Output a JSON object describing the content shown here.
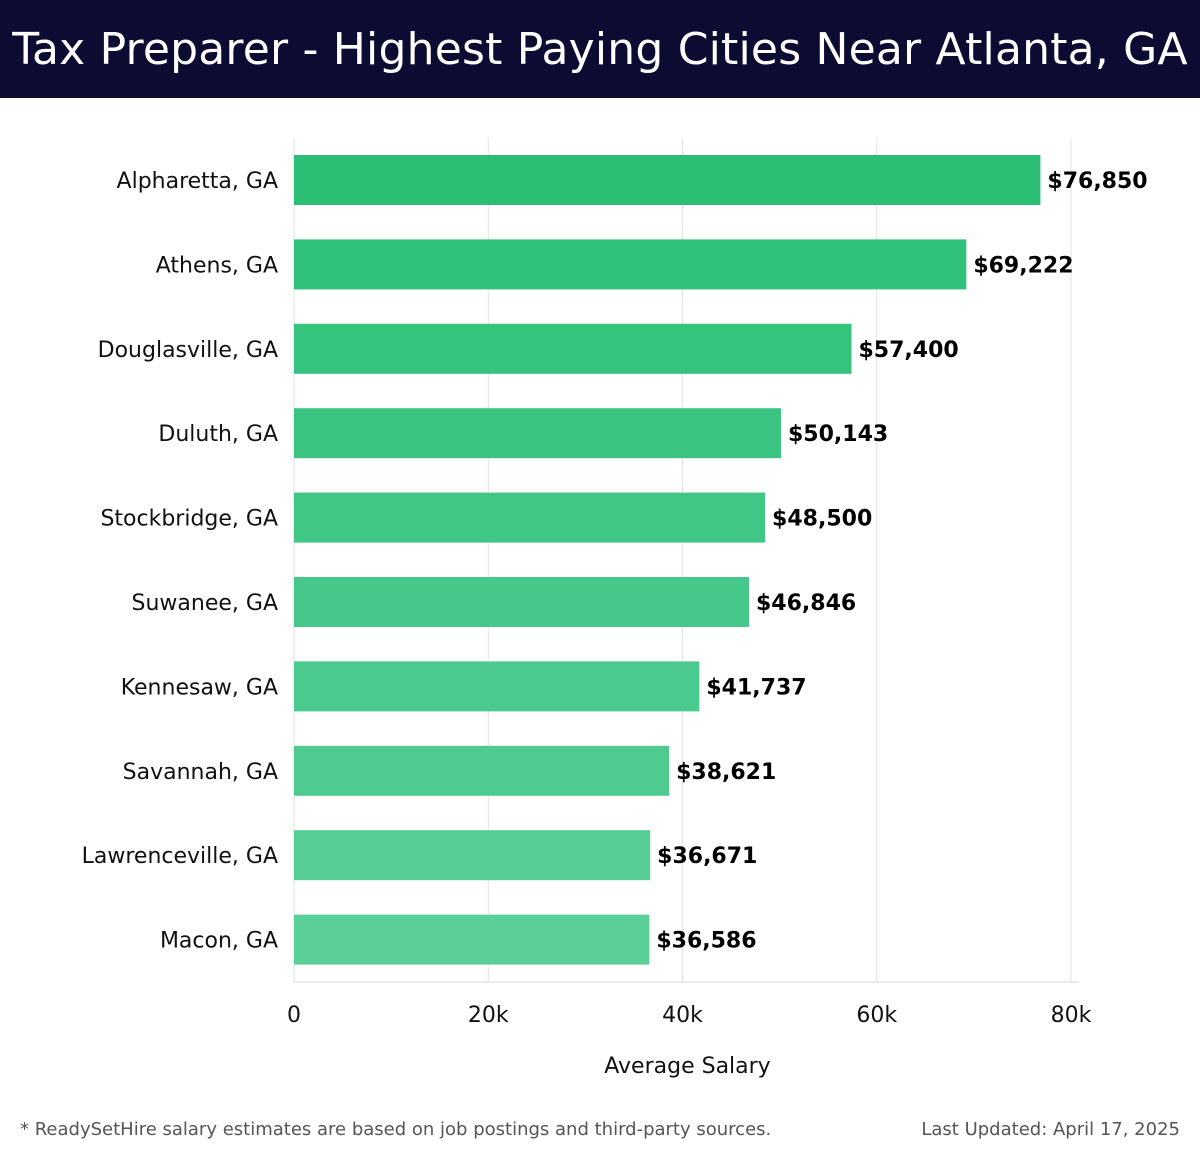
{
  "header": {
    "title": "Tax Preparer - Highest Paying Cities Near Atlanta, GA"
  },
  "footer": {
    "note": "* ReadySetHire salary estimates are based on job postings and third-party sources.",
    "updated": "Last Updated: April 17, 2025"
  },
  "colors": {
    "header_bg": "#0c0c33",
    "bar_top": "#2bbf76",
    "bar_bottom": "#5acf98"
  },
  "chart_data": {
    "type": "bar",
    "orientation": "horizontal",
    "title": "Tax Preparer - Highest Paying Cities Near Atlanta, GA",
    "xlabel": "Average Salary",
    "ylabel": "",
    "xlim": [
      0,
      80000
    ],
    "ticks": [
      0,
      20000,
      40000,
      60000,
      80000
    ],
    "tick_labels": [
      "0",
      "20k",
      "40k",
      "60k",
      "80k"
    ],
    "grid": true,
    "categories": [
      "Alpharetta, GA",
      "Athens, GA",
      "Douglasville, GA",
      "Duluth, GA",
      "Stockbridge, GA",
      "Suwanee, GA",
      "Kennesaw, GA",
      "Savannah, GA",
      "Lawrenceville, GA",
      "Macon, GA"
    ],
    "values": [
      76850,
      69222,
      57400,
      50143,
      48500,
      46846,
      41737,
      38621,
      36671,
      36586
    ],
    "value_labels": [
      "$76,850",
      "$69,222",
      "$57,400",
      "$50,143",
      "$48,500",
      "$46,846",
      "$41,737",
      "$38,621",
      "$36,671",
      "$36,586"
    ]
  }
}
